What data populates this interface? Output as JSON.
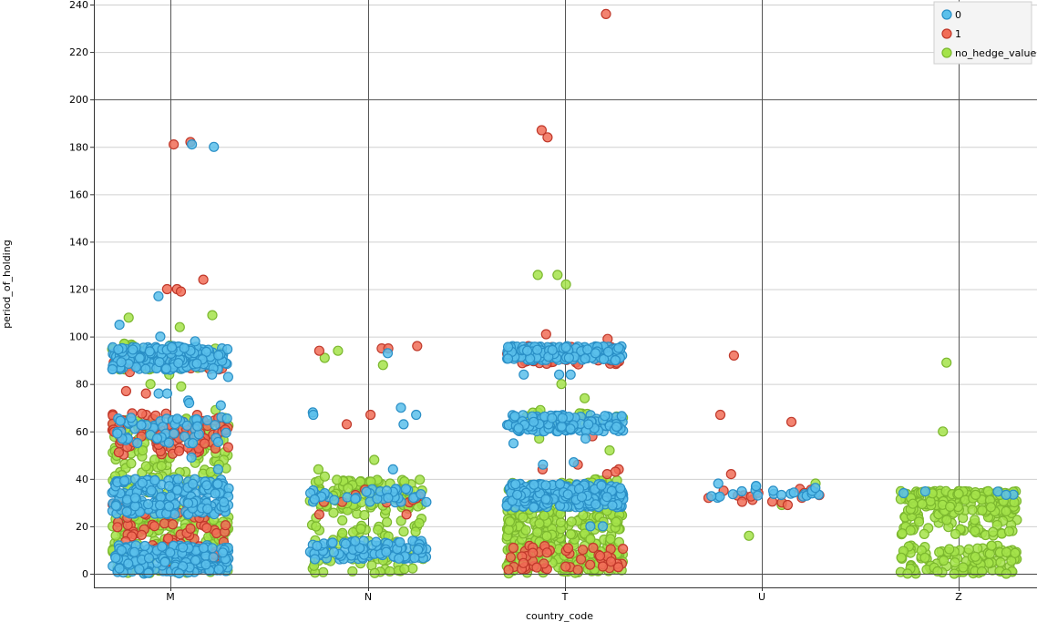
{
  "chart_data": {
    "type": "scatter",
    "title": "",
    "xlabel": "country_code",
    "ylabel": "period_of_holding",
    "categories": [
      "M",
      "N",
      "T",
      "U",
      "Z"
    ],
    "ylim": [
      0,
      240
    ],
    "y_ticks": [
      0,
      20,
      40,
      60,
      80,
      100,
      120,
      140,
      160,
      180,
      200,
      220,
      240
    ],
    "grid": true,
    "jitter": true,
    "legend_position": "top-right",
    "series": [
      {
        "name": "0",
        "color": "#5bc0eb",
        "stroke": "#2a8fc6",
        "clusters": [
          {
            "category": "M",
            "ranges": [
              [
                0,
                12,
                180
              ],
              [
                25,
                40,
                220
              ],
              [
                55,
                66,
                60
              ],
              [
                86,
                96,
                200
              ]
            ]
          },
          {
            "category": "N",
            "ranges": [
              [
                6,
                14,
                110
              ],
              [
                30,
                36,
                40
              ]
            ]
          },
          {
            "category": "T",
            "ranges": [
              [
                28,
                38,
                260
              ],
              [
                60,
                67,
                140
              ],
              [
                90,
                96,
                170
              ]
            ]
          },
          {
            "category": "U",
            "ranges": [
              [
                32,
                37,
                20
              ]
            ]
          },
          {
            "category": "Z",
            "ranges": [
              [
                33,
                35,
                4
              ]
            ]
          }
        ],
        "points": [
          [
            "M",
            180
          ],
          [
            "M",
            181
          ],
          [
            "M",
            117
          ],
          [
            "M",
            105
          ],
          [
            "M",
            100
          ],
          [
            "M",
            98
          ],
          [
            "M",
            84
          ],
          [
            "M",
            83
          ],
          [
            "M",
            76
          ],
          [
            "M",
            76
          ],
          [
            "M",
            73
          ],
          [
            "M",
            72
          ],
          [
            "M",
            71
          ],
          [
            "M",
            49
          ],
          [
            "M",
            44
          ],
          [
            "N",
            93
          ],
          [
            "N",
            70
          ],
          [
            "N",
            68
          ],
          [
            "N",
            67
          ],
          [
            "N",
            67
          ],
          [
            "N",
            63
          ],
          [
            "N",
            44
          ],
          [
            "T",
            84
          ],
          [
            "T",
            84
          ],
          [
            "T",
            84
          ],
          [
            "T",
            62
          ],
          [
            "T",
            57
          ],
          [
            "T",
            55
          ],
          [
            "T",
            47
          ],
          [
            "T",
            46
          ],
          [
            "T",
            20
          ],
          [
            "T",
            20
          ],
          [
            "U",
            38
          ],
          [
            "U",
            37
          ],
          [
            "U",
            35
          ],
          [
            "U",
            33
          ],
          [
            "Z",
            34
          ]
        ]
      },
      {
        "name": "1",
        "color": "#f16d57",
        "stroke": "#c0392b",
        "clusters": [
          {
            "category": "M",
            "ranges": [
              [
                1,
                30,
                90
              ],
              [
                50,
                68,
                90
              ],
              [
                86,
                92,
                30
              ]
            ]
          },
          {
            "category": "N",
            "ranges": [
              [
                30,
                36,
                10
              ]
            ]
          },
          {
            "category": "T",
            "ranges": [
              [
                1,
                12,
                50
              ],
              [
                88,
                96,
                60
              ]
            ]
          },
          {
            "category": "U",
            "ranges": [
              [
                30,
                36,
                14
              ]
            ]
          }
        ],
        "points": [
          [
            "M",
            181
          ],
          [
            "M",
            182
          ],
          [
            "M",
            124
          ],
          [
            "M",
            120
          ],
          [
            "M",
            120
          ],
          [
            "M",
            119
          ],
          [
            "M",
            85
          ],
          [
            "M",
            77
          ],
          [
            "M",
            76
          ],
          [
            "N",
            96
          ],
          [
            "N",
            95
          ],
          [
            "N",
            95
          ],
          [
            "N",
            94
          ],
          [
            "N",
            67
          ],
          [
            "N",
            63
          ],
          [
            "N",
            25
          ],
          [
            "N",
            25
          ],
          [
            "T",
            187
          ],
          [
            "T",
            184
          ],
          [
            "T",
            236
          ],
          [
            "T",
            101
          ],
          [
            "T",
            99
          ],
          [
            "T",
            58
          ],
          [
            "T",
            46
          ],
          [
            "T",
            44
          ],
          [
            "T",
            44
          ],
          [
            "T",
            43
          ],
          [
            "T",
            42
          ],
          [
            "U",
            92
          ],
          [
            "U",
            67
          ],
          [
            "U",
            64
          ],
          [
            "U",
            42
          ],
          [
            "U",
            35
          ],
          [
            "U",
            29
          ]
        ]
      },
      {
        "name": "no_hedge_value",
        "color": "#a4e34a",
        "stroke": "#7cb82f",
        "clusters": [
          {
            "category": "M",
            "ranges": [
              [
                0,
                30,
                220
              ],
              [
                34,
                66,
                140
              ],
              [
                86,
                98,
                40
              ]
            ]
          },
          {
            "category": "N",
            "ranges": [
              [
                0,
                30,
                90
              ],
              [
                28,
                40,
                80
              ]
            ]
          },
          {
            "category": "T",
            "ranges": [
              [
                0,
                30,
                320
              ],
              [
                30,
                40,
                60
              ],
              [
                64,
                68,
                20
              ]
            ]
          },
          {
            "category": "Z",
            "ranges": [
              [
                0,
                12,
                110
              ],
              [
                16,
                26,
                60
              ],
              [
                26,
                35,
                150
              ]
            ]
          }
        ],
        "points": [
          [
            "M",
            109
          ],
          [
            "M",
            108
          ],
          [
            "M",
            104
          ],
          [
            "M",
            97
          ],
          [
            "M",
            84
          ],
          [
            "M",
            80
          ],
          [
            "M",
            79
          ],
          [
            "M",
            69
          ],
          [
            "M",
            52
          ],
          [
            "M",
            50
          ],
          [
            "M",
            48
          ],
          [
            "M",
            46
          ],
          [
            "N",
            91
          ],
          [
            "N",
            88
          ],
          [
            "N",
            94
          ],
          [
            "N",
            48
          ],
          [
            "N",
            44
          ],
          [
            "N",
            41
          ],
          [
            "N",
            38
          ],
          [
            "N",
            1
          ],
          [
            "N",
            1
          ],
          [
            "T",
            126
          ],
          [
            "T",
            126
          ],
          [
            "T",
            122
          ],
          [
            "T",
            80
          ],
          [
            "T",
            74
          ],
          [
            "T",
            69
          ],
          [
            "T",
            57
          ],
          [
            "T",
            52
          ],
          [
            "U",
            38
          ],
          [
            "U",
            29
          ],
          [
            "U",
            16
          ],
          [
            "Z",
            89
          ],
          [
            "Z",
            60
          ],
          [
            "Z",
            18
          ],
          [
            "Z",
            17
          ],
          [
            "Z",
            1
          ],
          [
            "Z",
            0
          ]
        ]
      }
    ]
  }
}
